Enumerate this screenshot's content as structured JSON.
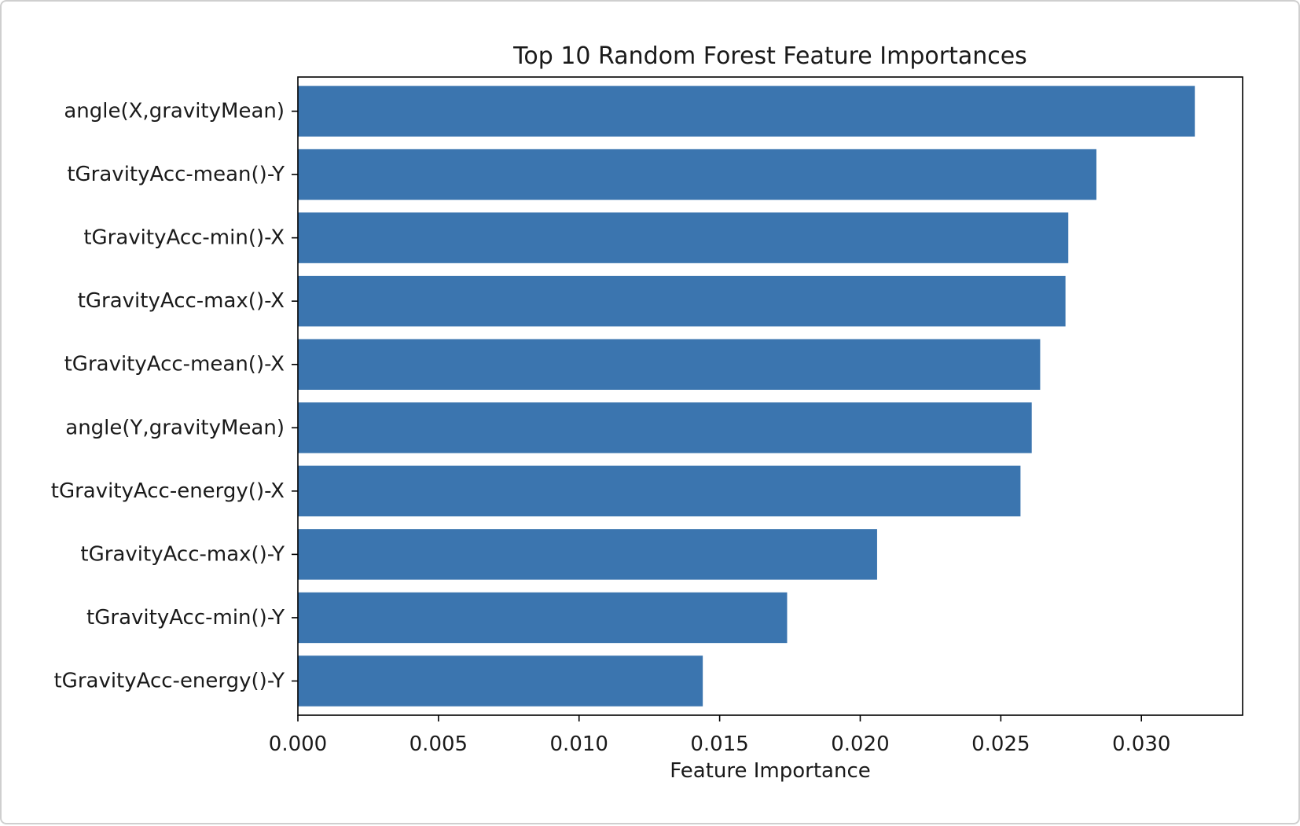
{
  "chart_data": {
    "type": "bar",
    "orientation": "horizontal",
    "title": "Top 10 Random Forest Feature Importances",
    "xlabel": "Feature Importance",
    "ylabel": "",
    "xlim": [
      0,
      0.0336
    ],
    "xticks": [
      0.0,
      0.005,
      0.01,
      0.015,
      0.02,
      0.025,
      0.03
    ],
    "xtick_labels": [
      "0.000",
      "0.005",
      "0.010",
      "0.015",
      "0.020",
      "0.025",
      "0.030"
    ],
    "grid": false,
    "bar_color": "#3b75af",
    "categories": [
      "angle(X,gravityMean)",
      "tGravityAcc-mean()-Y",
      "tGravityAcc-min()-X",
      "tGravityAcc-max()-X",
      "tGravityAcc-mean()-X",
      "angle(Y,gravityMean)",
      "tGravityAcc-energy()-X",
      "tGravityAcc-max()-Y",
      "tGravityAcc-min()-Y",
      "tGravityAcc-energy()-Y"
    ],
    "values": [
      0.0319,
      0.0284,
      0.0274,
      0.0273,
      0.0264,
      0.0261,
      0.0257,
      0.0206,
      0.0174,
      0.0144
    ]
  }
}
